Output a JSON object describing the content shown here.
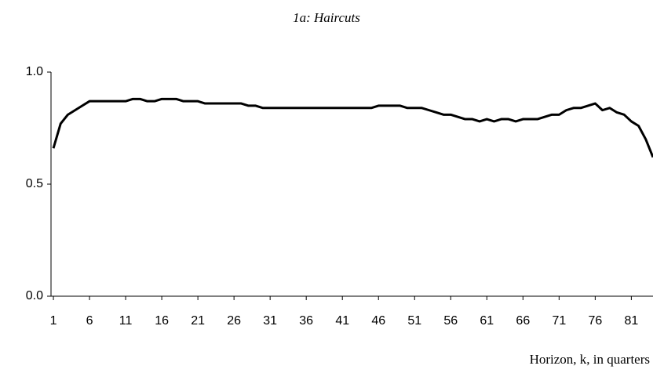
{
  "chart_data": {
    "type": "line",
    "title": "1a: Haircuts",
    "x_label": "Horizon, k, in quarters",
    "x": [
      1,
      2,
      3,
      4,
      5,
      6,
      7,
      8,
      9,
      10,
      11,
      12,
      13,
      14,
      15,
      16,
      17,
      18,
      19,
      20,
      21,
      22,
      23,
      24,
      25,
      26,
      27,
      28,
      29,
      30,
      31,
      32,
      33,
      34,
      35,
      36,
      37,
      38,
      39,
      40,
      41,
      42,
      43,
      44,
      45,
      46,
      47,
      48,
      49,
      50,
      51,
      52,
      53,
      54,
      55,
      56,
      57,
      58,
      59,
      60,
      61,
      62,
      63,
      64,
      65,
      66,
      67,
      68,
      69,
      70,
      71,
      72,
      73,
      74,
      75,
      76,
      77,
      78,
      79,
      80,
      81,
      82,
      83,
      84
    ],
    "series": [
      {
        "name": "Haircuts",
        "color": "#000000",
        "values": [
          0.66,
          0.77,
          0.81,
          0.83,
          0.85,
          0.87,
          0.87,
          0.87,
          0.87,
          0.87,
          0.87,
          0.88,
          0.88,
          0.87,
          0.87,
          0.88,
          0.88,
          0.88,
          0.87,
          0.87,
          0.87,
          0.86,
          0.86,
          0.86,
          0.86,
          0.86,
          0.86,
          0.85,
          0.85,
          0.84,
          0.84,
          0.84,
          0.84,
          0.84,
          0.84,
          0.84,
          0.84,
          0.84,
          0.84,
          0.84,
          0.84,
          0.84,
          0.84,
          0.84,
          0.84,
          0.85,
          0.85,
          0.85,
          0.85,
          0.84,
          0.84,
          0.84,
          0.83,
          0.82,
          0.81,
          0.81,
          0.8,
          0.79,
          0.79,
          0.78,
          0.79,
          0.78,
          0.79,
          0.79,
          0.78,
          0.79,
          0.79,
          0.79,
          0.8,
          0.81,
          0.81,
          0.83,
          0.84,
          0.84,
          0.85,
          0.86,
          0.83,
          0.84,
          0.82,
          0.81,
          0.78,
          0.76,
          0.7,
          0.62
        ]
      }
    ],
    "xlim": [
      0.67,
      84
    ],
    "xticks": [
      1,
      6,
      11,
      16,
      21,
      26,
      31,
      36,
      41,
      46,
      51,
      56,
      61,
      66,
      71,
      76,
      81
    ],
    "ylim": [
      0,
      1
    ],
    "yticks": [
      {
        "value": 0,
        "label": "0.0"
      },
      {
        "value": 0.5,
        "label": "0.5"
      },
      {
        "value": 1,
        "label": "1.0"
      }
    ]
  }
}
